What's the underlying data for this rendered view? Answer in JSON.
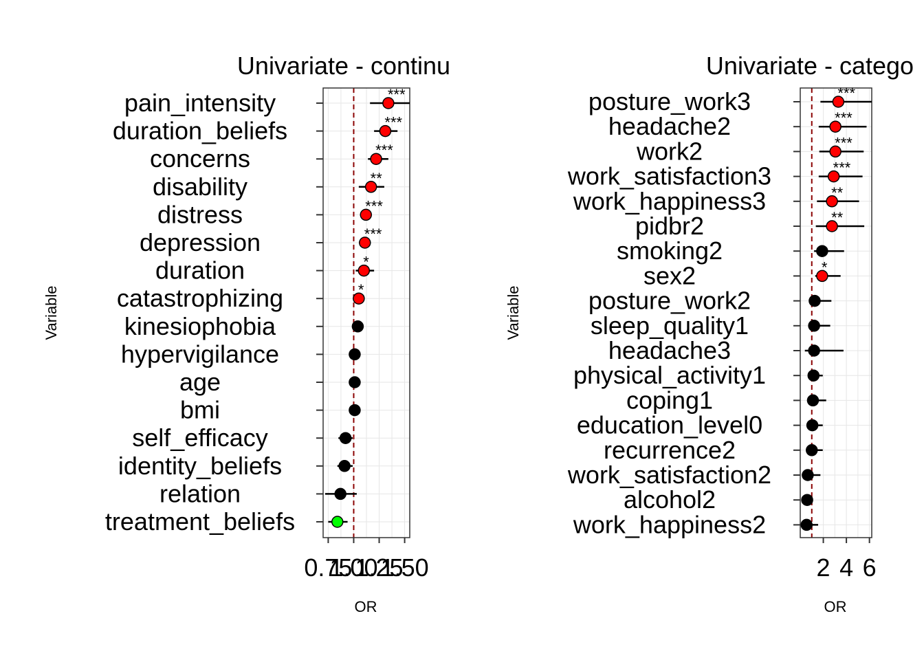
{
  "chart_data": [
    {
      "type": "forest",
      "title": "Univariate - continu",
      "xlabel": "OR",
      "ylabel": "Variable",
      "xlim": [
        0.7,
        1.55
      ],
      "xticks": [
        0.75,
        1.0,
        1.25,
        1.5
      ],
      "xtick_labels": [
        "0.75",
        "1.00",
        "1.25",
        "1.50"
      ],
      "reference_line": 1.0,
      "grid": true,
      "items": [
        {
          "label": "pain_intensity",
          "or": 1.34,
          "lo": 1.16,
          "hi": 1.55,
          "sig": "***",
          "color": "#ff0000"
        },
        {
          "label": "duration_beliefs",
          "or": 1.31,
          "lo": 1.2,
          "hi": 1.43,
          "sig": "***",
          "color": "#ff0000"
        },
        {
          "label": "concerns",
          "or": 1.22,
          "lo": 1.14,
          "hi": 1.34,
          "sig": "***",
          "color": "#ff0000"
        },
        {
          "label": "disability",
          "or": 1.17,
          "lo": 1.05,
          "hi": 1.3,
          "sig": "**",
          "color": "#ff0000"
        },
        {
          "label": "distress",
          "or": 1.12,
          "lo": 1.07,
          "hi": 1.17,
          "sig": "***",
          "color": "#ff0000"
        },
        {
          "label": "depression",
          "or": 1.11,
          "lo": 1.06,
          "hi": 1.16,
          "sig": "***",
          "color": "#ff0000"
        },
        {
          "label": "duration",
          "or": 1.1,
          "lo": 1.02,
          "hi": 1.2,
          "sig": "*",
          "color": "#ff0000"
        },
        {
          "label": "catastrophizing",
          "or": 1.05,
          "lo": 1.01,
          "hi": 1.09,
          "sig": "*",
          "color": "#ff0000"
        },
        {
          "label": "kinesiophobia",
          "or": 1.04,
          "lo": 1.0,
          "hi": 1.08,
          "sig": "",
          "color": "#000000"
        },
        {
          "label": "hypervigilance",
          "or": 1.01,
          "lo": 0.97,
          "hi": 1.05,
          "sig": "",
          "color": "#000000"
        },
        {
          "label": "age",
          "or": 1.01,
          "lo": 0.99,
          "hi": 1.03,
          "sig": "",
          "color": "#000000"
        },
        {
          "label": "bmi",
          "or": 1.01,
          "lo": 0.96,
          "hi": 1.06,
          "sig": "",
          "color": "#000000"
        },
        {
          "label": "self_efficacy",
          "or": 0.92,
          "lo": 0.85,
          "hi": 0.99,
          "sig": "",
          "color": "#000000"
        },
        {
          "label": "identity_beliefs",
          "or": 0.91,
          "lo": 0.84,
          "hi": 0.99,
          "sig": "",
          "color": "#000000"
        },
        {
          "label": "relation",
          "or": 0.87,
          "lo": 0.72,
          "hi": 1.03,
          "sig": "",
          "color": "#000000"
        },
        {
          "label": "treatment_beliefs",
          "or": 0.84,
          "lo": 0.75,
          "hi": 0.94,
          "sig": "",
          "color": "#00ff00"
        }
      ]
    },
    {
      "type": "forest",
      "title": "Univariate - catego",
      "xlabel": "OR",
      "ylabel": "Variable",
      "xlim": [
        0.0,
        6.2
      ],
      "xticks": [
        2,
        4,
        6
      ],
      "xtick_labels": [
        "2",
        "4",
        "6"
      ],
      "reference_line": 1.0,
      "grid": true,
      "items": [
        {
          "label": "posture_work3",
          "or": 3.3,
          "lo": 1.75,
          "hi": 6.2,
          "sig": "***",
          "color": "#ff0000"
        },
        {
          "label": "headache2",
          "or": 3.05,
          "lo": 1.6,
          "hi": 5.75,
          "sig": "***",
          "color": "#ff0000"
        },
        {
          "label": "work2",
          "or": 3.05,
          "lo": 1.65,
          "hi": 5.5,
          "sig": "***",
          "color": "#ff0000"
        },
        {
          "label": "work_satisfaction3",
          "or": 2.9,
          "lo": 1.6,
          "hi": 5.4,
          "sig": "***",
          "color": "#ff0000"
        },
        {
          "label": "work_happiness3",
          "or": 2.75,
          "lo": 1.45,
          "hi": 5.1,
          "sig": "**",
          "color": "#ff0000"
        },
        {
          "label": "pidbr2",
          "or": 2.75,
          "lo": 1.35,
          "hi": 5.55,
          "sig": "**",
          "color": "#ff0000"
        },
        {
          "label": "smoking2",
          "or": 1.9,
          "lo": 1.2,
          "hi": 3.8,
          "sig": "",
          "color": "#000000"
        },
        {
          "label": "sex2",
          "or": 1.9,
          "lo": 1.3,
          "hi": 3.5,
          "sig": "*",
          "color": "#ff0000"
        },
        {
          "label": "posture_work2",
          "or": 1.25,
          "lo": 0.75,
          "hi": 2.7,
          "sig": "",
          "color": "#000000"
        },
        {
          "label": "sleep_quality1",
          "or": 1.2,
          "lo": 0.7,
          "hi": 2.6,
          "sig": "",
          "color": "#000000"
        },
        {
          "label": "headache3",
          "or": 1.2,
          "lo": 0.4,
          "hi": 3.75,
          "sig": "",
          "color": "#000000"
        },
        {
          "label": "physical_activity1",
          "or": 1.15,
          "lo": 0.7,
          "hi": 1.95,
          "sig": "",
          "color": "#000000"
        },
        {
          "label": "coping1",
          "or": 1.1,
          "lo": 0.6,
          "hi": 2.25,
          "sig": "",
          "color": "#000000"
        },
        {
          "label": "education_level0",
          "or": 1.05,
          "lo": 0.7,
          "hi": 1.95,
          "sig": "",
          "color": "#000000"
        },
        {
          "label": "recurrence2",
          "or": 1.0,
          "lo": 0.6,
          "hi": 1.95,
          "sig": "",
          "color": "#000000"
        },
        {
          "label": "work_satisfaction2",
          "or": 0.65,
          "lo": 0.35,
          "hi": 1.75,
          "sig": "",
          "color": "#000000"
        },
        {
          "label": "alcohol2",
          "or": 0.6,
          "lo": 0.3,
          "hi": 1.0,
          "sig": "",
          "color": "#000000"
        },
        {
          "label": "work_happiness2",
          "or": 0.55,
          "lo": 0.3,
          "hi": 1.55,
          "sig": "",
          "color": "#000000"
        }
      ]
    }
  ]
}
